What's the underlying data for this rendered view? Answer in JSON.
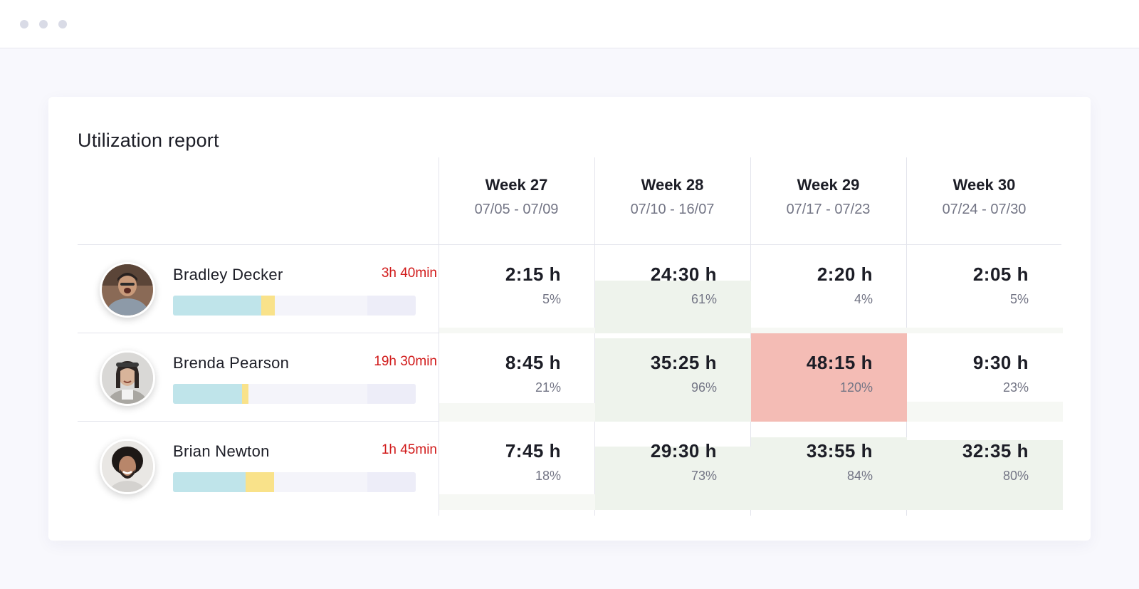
{
  "window": {
    "controls": [
      "close-dot",
      "minimize-dot",
      "maximize-dot"
    ]
  },
  "report": {
    "title": "Utilization report"
  },
  "weeks": [
    {
      "label": "Week 27",
      "dates": "07/05 - 07/09"
    },
    {
      "label": "Week 28",
      "dates": "07/10 - 16/07"
    },
    {
      "label": "Week 29",
      "dates": "07/17 - 07/23"
    },
    {
      "label": "Week 30",
      "dates": "07/24 - 07/30"
    }
  ],
  "people": [
    {
      "name": "Bradley Decker",
      "overtime": "3h 40min",
      "utilization_bar": {
        "billable": 0.365,
        "non_billable": 0.055
      },
      "cells": [
        {
          "hours": "2:15 h",
          "percent": "5%",
          "utilization": 0.05,
          "status": "normal"
        },
        {
          "hours": "24:30 h",
          "percent": "61%",
          "utilization": 0.61,
          "status": "normal"
        },
        {
          "hours": "2:20 h",
          "percent": "4%",
          "utilization": 0.04,
          "status": "normal"
        },
        {
          "hours": "2:05 h",
          "percent": "5%",
          "utilization": 0.05,
          "status": "normal"
        }
      ]
    },
    {
      "name": "Brenda Pearson",
      "overtime": "19h 30min",
      "utilization_bar": {
        "billable": 0.285,
        "non_billable": 0.025
      },
      "cells": [
        {
          "hours": "8:45 h",
          "percent": "21%",
          "utilization": 0.21,
          "status": "normal"
        },
        {
          "hours": "35:25 h",
          "percent": "96%",
          "utilization": 0.96,
          "status": "normal"
        },
        {
          "hours": "48:15 h",
          "percent": "120%",
          "utilization": 1.2,
          "status": "over"
        },
        {
          "hours": "9:30 h",
          "percent": "23%",
          "utilization": 0.23,
          "status": "normal"
        }
      ]
    },
    {
      "name": "Brian Newton",
      "overtime": "1h 45min",
      "utilization_bar": {
        "billable": 0.3,
        "non_billable": 0.115
      },
      "cells": [
        {
          "hours": "7:45 h",
          "percent": "18%",
          "utilization": 0.18,
          "status": "normal"
        },
        {
          "hours": "29:30 h",
          "percent": "73%",
          "utilization": 0.73,
          "status": "normal"
        },
        {
          "hours": "33:55 h",
          "percent": "84%",
          "utilization": 0.84,
          "status": "normal"
        },
        {
          "hours": "32:35 h",
          "percent": "80%",
          "utilization": 0.8,
          "status": "normal"
        }
      ]
    }
  ],
  "colors": {
    "overtime_text": "#d11a1a",
    "billable_bar": "#bfe4ea",
    "non_billable_bar": "#f9e28a",
    "bar_track": "#f4f4fa",
    "cell_fill": "#eef3ec",
    "cell_over": "#f4bcb5",
    "grid_line": "#e3e4ec"
  }
}
